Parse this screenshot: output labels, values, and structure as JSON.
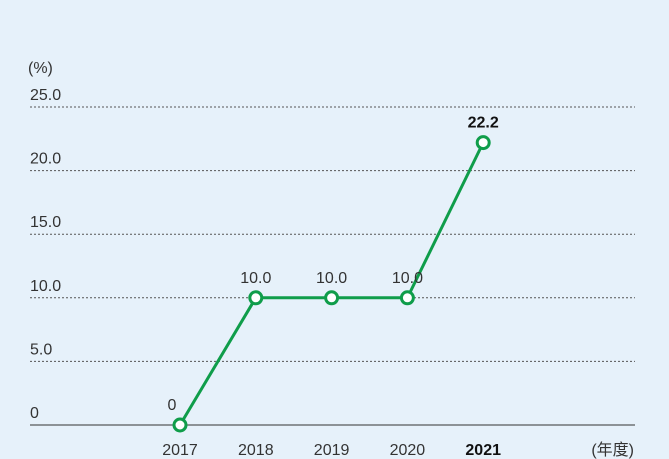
{
  "chart_data": {
    "type": "line",
    "y_label": "(%)",
    "x_label": "(年度)",
    "categories": [
      "2017",
      "2018",
      "2019",
      "2020",
      "2021"
    ],
    "series": [
      {
        "name": "rate",
        "color": "#0f9d4a",
        "values": [
          0,
          10,
          10,
          10,
          22.2
        ],
        "value_labels": [
          "0",
          "10.0",
          "10.0",
          "10.0",
          "22.2"
        ]
      }
    ],
    "ylim": [
      0,
      25
    ],
    "yticks": [
      0,
      {
        "value": 5,
        "label": "5.0"
      },
      {
        "value": 10,
        "label": "10.0"
      },
      {
        "value": 15,
        "label": "15.0"
      },
      {
        "value": 20,
        "label": "20.0"
      },
      {
        "value": 25,
        "label": "25.0"
      }
    ],
    "grid": true
  }
}
